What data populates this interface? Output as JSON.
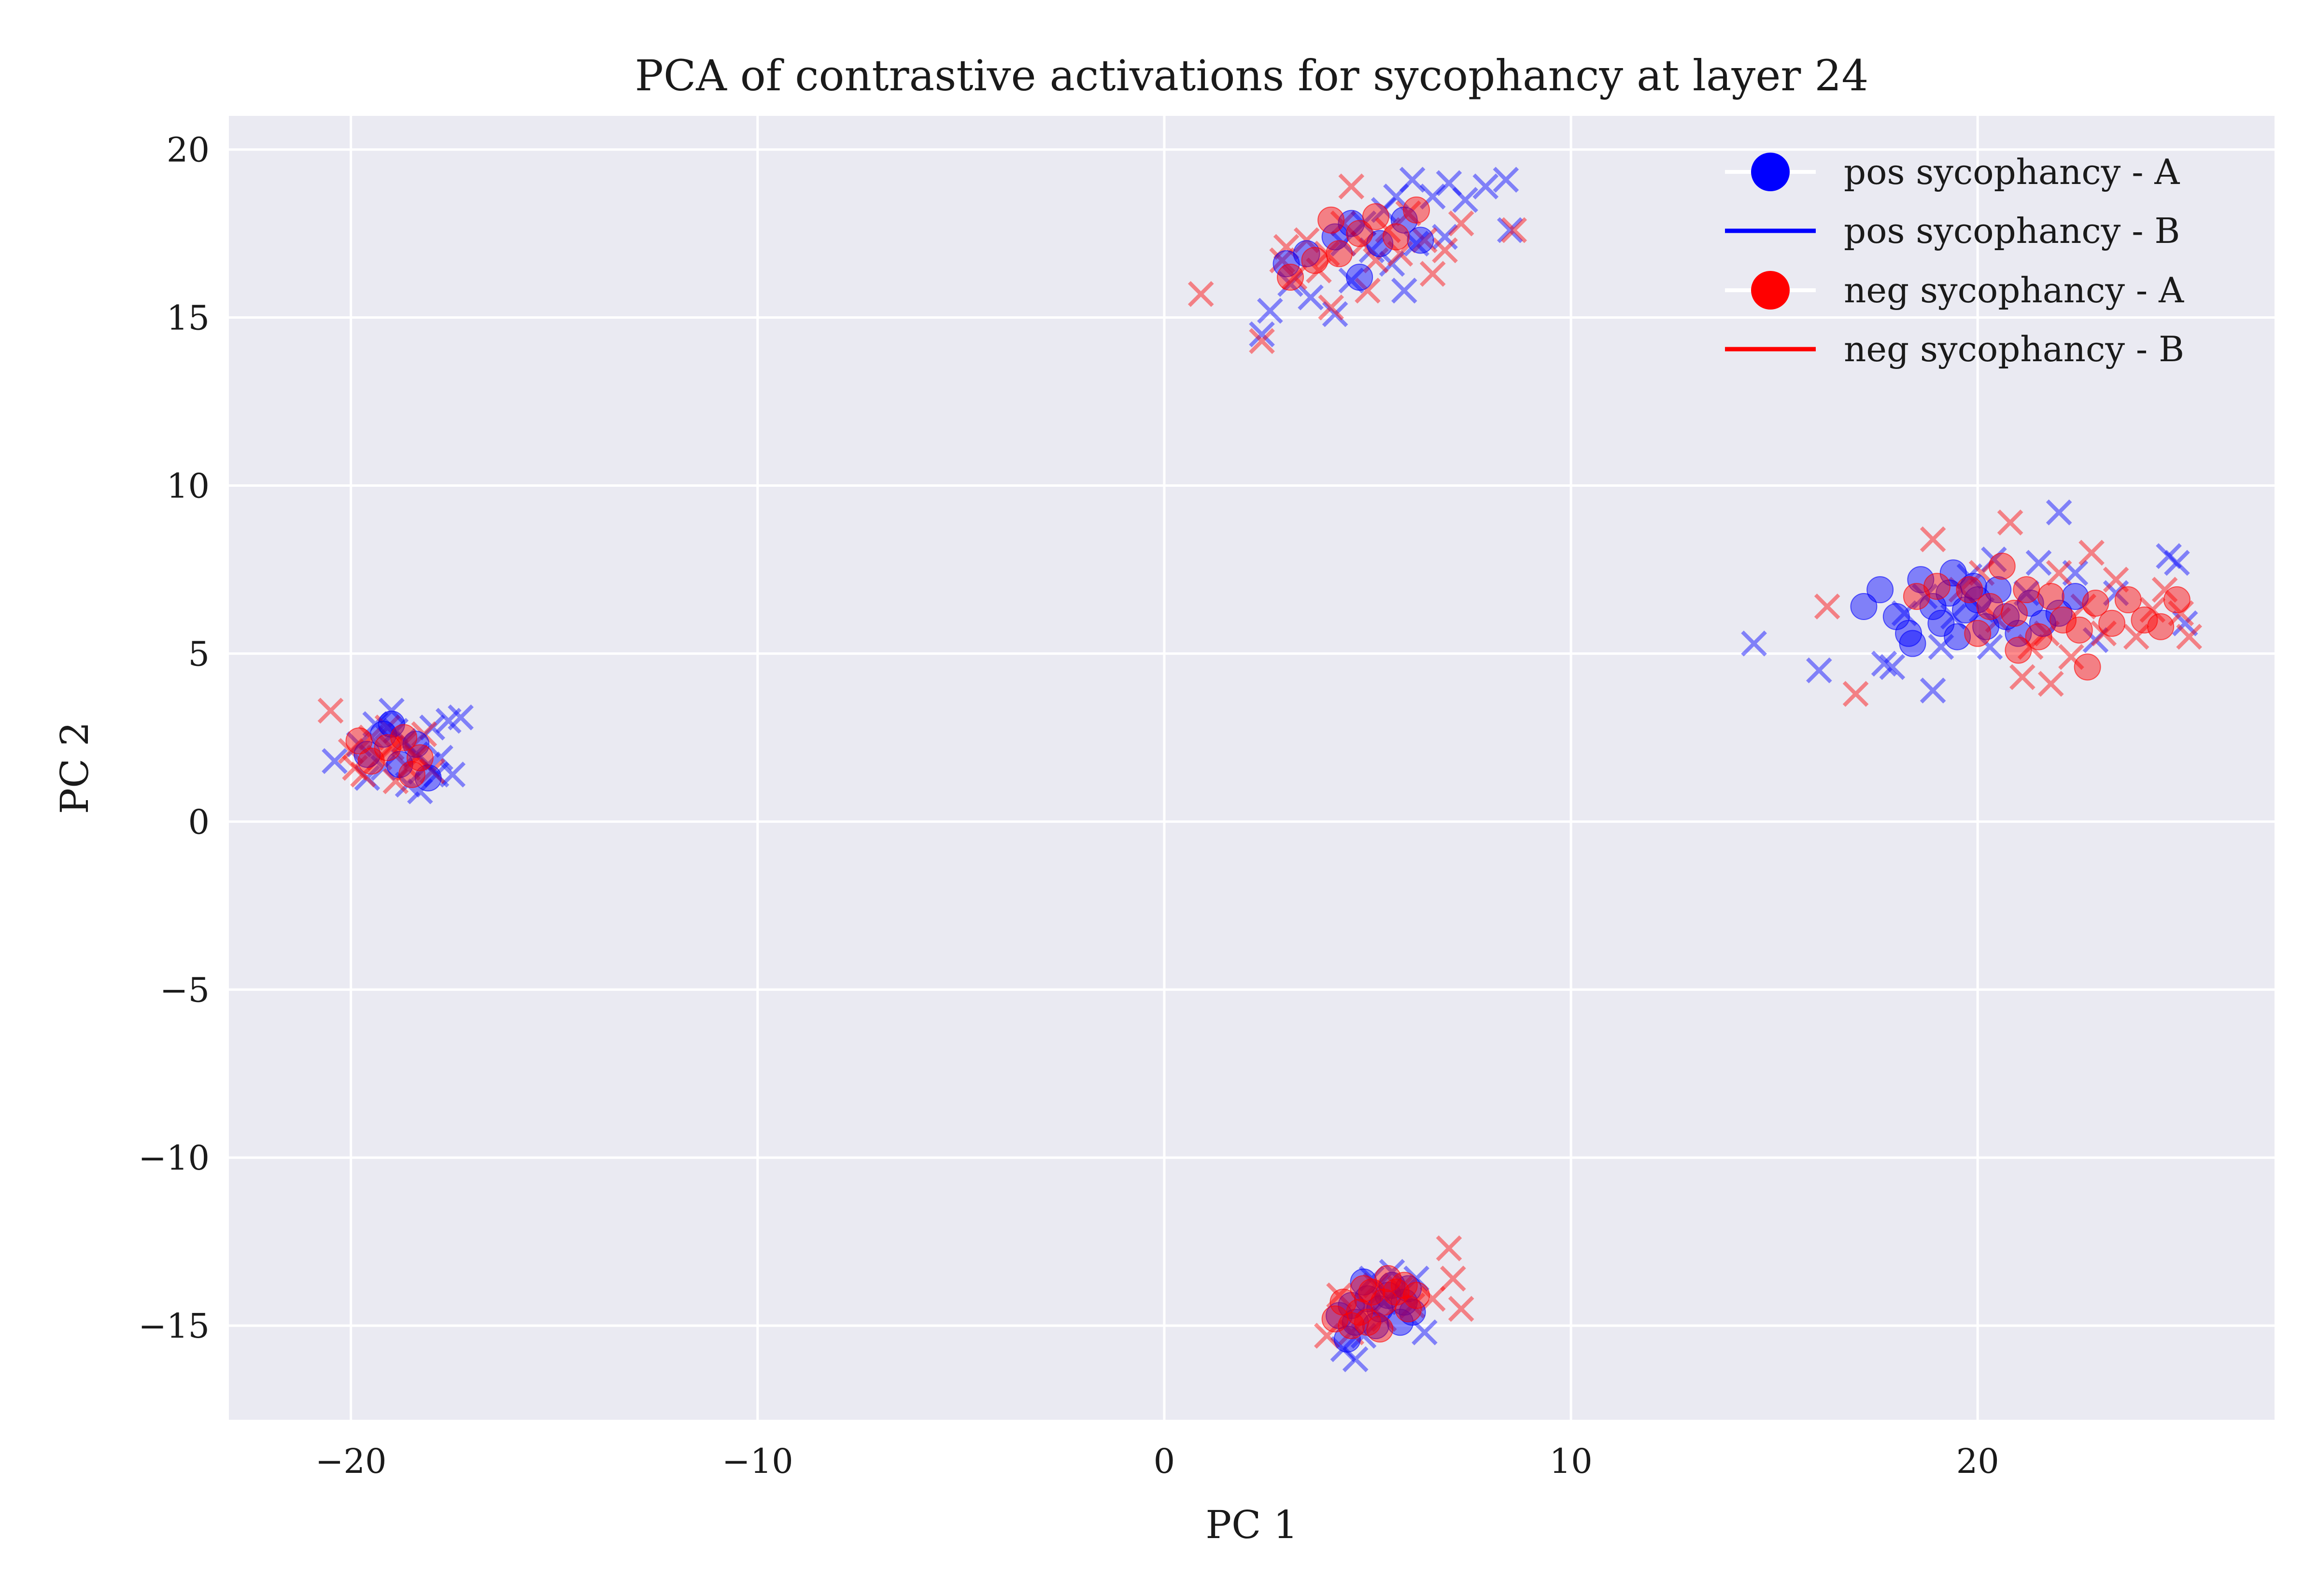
{
  "chart_data": {
    "type": "scatter",
    "title": "PCA of contrastive activations for sycophancy at layer 24",
    "xlabel": "PC 1",
    "ylabel": "PC 2",
    "xlim": [
      -23,
      27.3
    ],
    "ylim": [
      -17.8,
      21
    ],
    "xticks": [
      -20,
      -10,
      0,
      10,
      20
    ],
    "yticks": [
      -15,
      -10,
      -5,
      0,
      5,
      10,
      15,
      20
    ],
    "xtick_labels": [
      "−20",
      "−10",
      "0",
      "10",
      "20"
    ],
    "ytick_labels": [
      "−15",
      "−10",
      "−5",
      "0",
      "5",
      "10",
      "15",
      "20"
    ],
    "grid": true,
    "background": "#eaeaf2",
    "legend_position": "top-right",
    "legend": [
      {
        "label": "pos sycophancy - A",
        "marker": "circle",
        "color": "#0000ff"
      },
      {
        "label": "pos sycophancy - B",
        "marker": "line",
        "color": "#0000ff"
      },
      {
        "label": "neg sycophancy - A",
        "marker": "circle",
        "color": "#ff0000"
      },
      {
        "label": "neg sycophancy - B",
        "marker": "line",
        "color": "#ff0000"
      }
    ],
    "series": [
      {
        "marker": "x",
        "color": "#0000ff",
        "points": [
          [
            -20.4,
            1.8
          ],
          [
            -19.8,
            2.3
          ],
          [
            -19.4,
            2.9
          ],
          [
            -19.0,
            3.3
          ],
          [
            -18.6,
            1.1
          ],
          [
            -18.3,
            0.9
          ],
          [
            -18.0,
            2.8
          ],
          [
            -17.6,
            3.0
          ],
          [
            -17.3,
            3.1
          ],
          [
            -17.9,
            1.4
          ],
          [
            -18.7,
            2.4
          ],
          [
            -19.2,
            1.6
          ],
          [
            -18.4,
            2.0
          ],
          [
            -17.8,
            1.9
          ],
          [
            -19.6,
            1.3
          ],
          [
            -18.9,
            2.7
          ],
          [
            -17.5,
            1.4
          ],
          [
            -18.1,
            1.7
          ],
          [
            2.4,
            14.5
          ],
          [
            2.6,
            15.2
          ],
          [
            3.1,
            16.0
          ],
          [
            3.6,
            15.6
          ],
          [
            4.2,
            15.1
          ],
          [
            4.6,
            16.1
          ],
          [
            5.1,
            17.0
          ],
          [
            5.4,
            18.2
          ],
          [
            5.7,
            18.6
          ],
          [
            6.1,
            19.1
          ],
          [
            6.6,
            18.6
          ],
          [
            7.0,
            19.0
          ],
          [
            7.4,
            18.5
          ],
          [
            7.9,
            18.9
          ],
          [
            8.4,
            19.1
          ],
          [
            8.5,
            17.6
          ],
          [
            6.2,
            17.2
          ],
          [
            5.6,
            16.6
          ],
          [
            4.9,
            17.8
          ],
          [
            4.4,
            17.2
          ],
          [
            5.9,
            15.8
          ],
          [
            6.9,
            17.4
          ],
          [
            5.1,
            -13.6
          ],
          [
            5.6,
            -13.4
          ],
          [
            6.2,
            -13.6
          ],
          [
            6.4,
            -15.2
          ],
          [
            4.9,
            -15.3
          ],
          [
            4.4,
            -15.7
          ],
          [
            4.7,
            -16.0
          ],
          [
            5.4,
            -14.3
          ],
          [
            14.5,
            5.3
          ],
          [
            16.1,
            4.5
          ],
          [
            17.7,
            4.7
          ],
          [
            17.9,
            4.6
          ],
          [
            18.2,
            6.2
          ],
          [
            18.7,
            6.7
          ],
          [
            18.9,
            3.9
          ],
          [
            19.1,
            5.2
          ],
          [
            19.4,
            6.1
          ],
          [
            19.8,
            7.3
          ],
          [
            20.1,
            6.3
          ],
          [
            20.4,
            7.8
          ],
          [
            20.3,
            5.2
          ],
          [
            21.2,
            6.8
          ],
          [
            21.5,
            7.7
          ],
          [
            22.0,
            9.2
          ],
          [
            22.4,
            7.4
          ],
          [
            22.9,
            5.4
          ],
          [
            23.4,
            6.8
          ],
          [
            24.7,
            7.9
          ],
          [
            24.9,
            7.7
          ],
          [
            25.1,
            5.9
          ]
        ]
      },
      {
        "marker": "x",
        "color": "#ff0000",
        "points": [
          [
            -20.5,
            3.3
          ],
          [
            -20.0,
            2.1
          ],
          [
            -19.7,
            1.4
          ],
          [
            -19.3,
            1.9
          ],
          [
            -19.0,
            2.2
          ],
          [
            -18.6,
            1.6
          ],
          [
            -18.2,
            2.6
          ],
          [
            -18.9,
            1.2
          ],
          [
            -19.5,
            2.5
          ],
          [
            -18.4,
            1.9
          ],
          [
            -18.0,
            1.5
          ],
          [
            -19.9,
            1.6
          ],
          [
            -19.1,
            2.8
          ],
          [
            -18.7,
            2.3
          ],
          [
            0.9,
            15.7
          ],
          [
            2.4,
            14.3
          ],
          [
            2.9,
            16.7
          ],
          [
            3.2,
            16.2
          ],
          [
            3.5,
            17.3
          ],
          [
            3.8,
            16.4
          ],
          [
            4.1,
            15.3
          ],
          [
            4.4,
            17.8
          ],
          [
            4.6,
            18.9
          ],
          [
            4.9,
            17.2
          ],
          [
            5.2,
            16.7
          ],
          [
            5.5,
            17.6
          ],
          [
            5.8,
            16.9
          ],
          [
            6.0,
            18.1
          ],
          [
            6.4,
            17.3
          ],
          [
            6.9,
            17.0
          ],
          [
            7.3,
            17.8
          ],
          [
            8.6,
            17.6
          ],
          [
            3.0,
            17.1
          ],
          [
            4.0,
            16.9
          ],
          [
            5.0,
            15.8
          ],
          [
            6.6,
            16.3
          ],
          [
            4.3,
            -14.1
          ],
          [
            4.6,
            -15.2
          ],
          [
            5.0,
            -14.4
          ],
          [
            5.4,
            -14.8
          ],
          [
            5.8,
            -13.9
          ],
          [
            6.1,
            -14.4
          ],
          [
            6.6,
            -14.2
          ],
          [
            7.0,
            -12.7
          ],
          [
            7.1,
            -13.6
          ],
          [
            7.3,
            -14.5
          ],
          [
            4.0,
            -15.3
          ],
          [
            5.2,
            -13.8
          ],
          [
            16.3,
            6.4
          ],
          [
            17.0,
            3.8
          ],
          [
            18.9,
            8.4
          ],
          [
            19.6,
            6.9
          ],
          [
            20.1,
            7.4
          ],
          [
            20.8,
            8.9
          ],
          [
            21.1,
            4.3
          ],
          [
            21.3,
            5.2
          ],
          [
            21.7,
            5.6
          ],
          [
            21.8,
            4.1
          ],
          [
            22.0,
            7.4
          ],
          [
            22.3,
            4.9
          ],
          [
            22.8,
            8.0
          ],
          [
            23.1,
            5.6
          ],
          [
            23.4,
            7.2
          ],
          [
            23.9,
            5.5
          ],
          [
            24.3,
            6.3
          ],
          [
            24.6,
            6.9
          ],
          [
            25.0,
            6.2
          ],
          [
            25.2,
            5.5
          ],
          [
            22.6,
            6.4
          ],
          [
            20.5,
            6.0
          ]
        ]
      },
      {
        "marker": "o",
        "color": "#0000ff",
        "points": [
          [
            -19.6,
            2.0
          ],
          [
            -19.2,
            2.6
          ],
          [
            -18.8,
            1.7
          ],
          [
            -18.4,
            2.3
          ],
          [
            -18.1,
            1.3
          ],
          [
            -19.0,
            2.9
          ],
          [
            3.0,
            16.6
          ],
          [
            3.5,
            16.9
          ],
          [
            4.2,
            17.4
          ],
          [
            4.6,
            17.8
          ],
          [
            5.3,
            17.2
          ],
          [
            5.9,
            17.9
          ],
          [
            6.3,
            17.3
          ],
          [
            4.8,
            16.2
          ],
          [
            4.3,
            -14.7
          ],
          [
            4.7,
            -14.9
          ],
          [
            5.0,
            -14.2
          ],
          [
            5.3,
            -14.5
          ],
          [
            5.6,
            -13.8
          ],
          [
            5.9,
            -14.3
          ],
          [
            6.1,
            -14.6
          ],
          [
            4.5,
            -15.4
          ],
          [
            5.2,
            -15.0
          ],
          [
            5.8,
            -14.9
          ],
          [
            4.9,
            -13.7
          ],
          [
            6.0,
            -13.9
          ],
          [
            5.5,
            -14.1
          ],
          [
            4.6,
            -14.4
          ],
          [
            17.2,
            6.4
          ],
          [
            17.6,
            6.9
          ],
          [
            18.0,
            6.1
          ],
          [
            18.3,
            5.6
          ],
          [
            18.6,
            7.2
          ],
          [
            18.9,
            6.4
          ],
          [
            19.1,
            5.9
          ],
          [
            19.3,
            6.8
          ],
          [
            19.5,
            5.5
          ],
          [
            19.7,
            6.3
          ],
          [
            19.9,
            7.0
          ],
          [
            20.0,
            6.6
          ],
          [
            20.2,
            5.8
          ],
          [
            20.5,
            6.9
          ],
          [
            20.7,
            6.1
          ],
          [
            21.0,
            5.6
          ],
          [
            21.3,
            6.5
          ],
          [
            21.6,
            5.9
          ],
          [
            22.0,
            6.2
          ],
          [
            22.4,
            6.7
          ],
          [
            18.4,
            5.3
          ],
          [
            19.4,
            7.4
          ]
        ]
      },
      {
        "marker": "o",
        "color": "#ff0000",
        "points": [
          [
            -19.5,
            1.8
          ],
          [
            -19.1,
            2.2
          ],
          [
            -18.7,
            2.5
          ],
          [
            -18.3,
            1.9
          ],
          [
            -19.8,
            2.4
          ],
          [
            -18.5,
            1.4
          ],
          [
            3.1,
            16.2
          ],
          [
            3.7,
            16.7
          ],
          [
            4.3,
            16.9
          ],
          [
            4.8,
            17.5
          ],
          [
            5.2,
            18.0
          ],
          [
            5.7,
            17.4
          ],
          [
            6.2,
            18.2
          ],
          [
            4.1,
            17.9
          ],
          [
            4.4,
            -14.3
          ],
          [
            4.8,
            -14.6
          ],
          [
            5.1,
            -14.0
          ],
          [
            5.4,
            -14.3
          ],
          [
            5.7,
            -14.0
          ],
          [
            6.0,
            -14.5
          ],
          [
            4.6,
            -15.0
          ],
          [
            5.0,
            -14.9
          ],
          [
            5.5,
            -13.6
          ],
          [
            5.9,
            -13.8
          ],
          [
            4.2,
            -14.8
          ],
          [
            5.3,
            -15.1
          ],
          [
            6.2,
            -14.1
          ],
          [
            4.9,
            -13.9
          ],
          [
            18.5,
            6.7
          ],
          [
            19.0,
            7.0
          ],
          [
            19.8,
            6.9
          ],
          [
            20.3,
            6.4
          ],
          [
            20.6,
            7.6
          ],
          [
            20.9,
            6.2
          ],
          [
            21.2,
            6.9
          ],
          [
            21.5,
            5.5
          ],
          [
            21.8,
            6.7
          ],
          [
            22.1,
            6.0
          ],
          [
            22.5,
            5.7
          ],
          [
            22.9,
            6.5
          ],
          [
            23.3,
            5.9
          ],
          [
            23.7,
            6.6
          ],
          [
            24.1,
            6.0
          ],
          [
            24.5,
            5.8
          ],
          [
            24.9,
            6.6
          ],
          [
            22.7,
            4.6
          ],
          [
            21.0,
            5.1
          ],
          [
            20.0,
            5.6
          ]
        ]
      }
    ]
  }
}
